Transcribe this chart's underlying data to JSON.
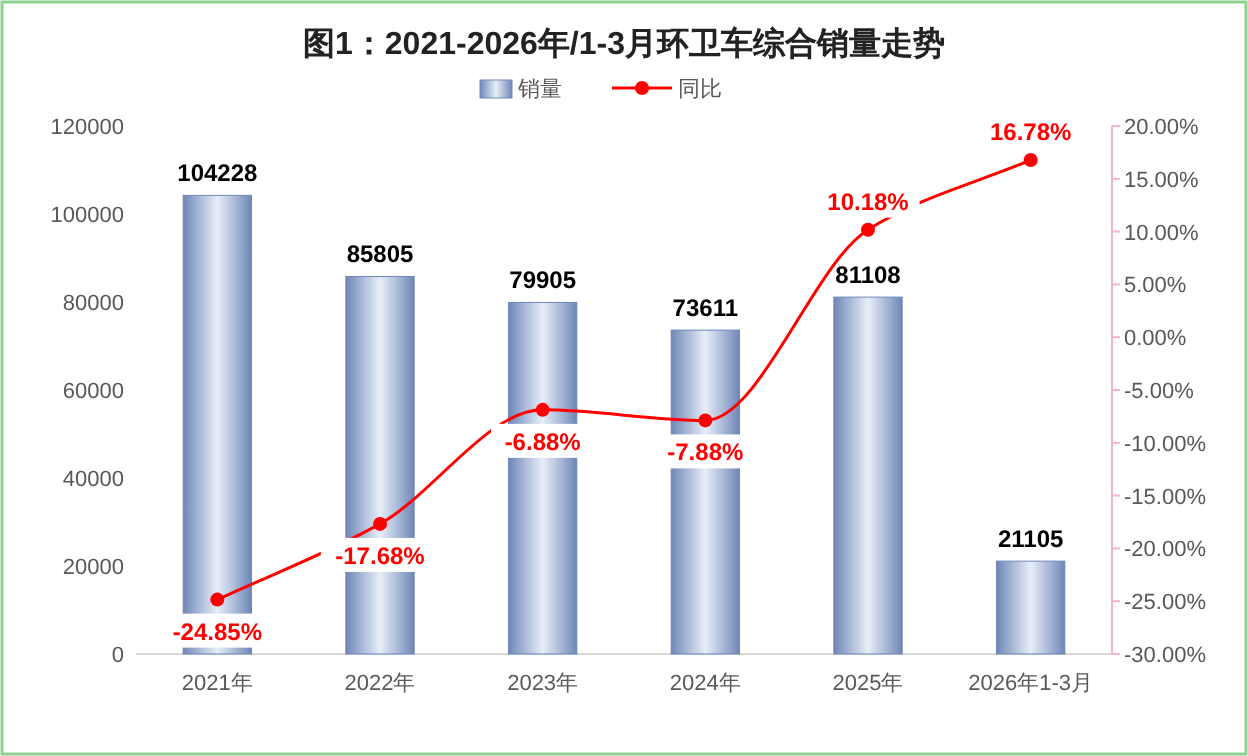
{
  "chart_data": {
    "type": "bar",
    "title": "图1：2021-2026年/1-3月环卫车综合销量走势",
    "categories": [
      "2021年",
      "2022年",
      "2023年",
      "2024年",
      "2025年",
      "2026年1-3月"
    ],
    "series": [
      {
        "name": "销量",
        "color": "#6f87b8",
        "values": [
          104228,
          85805,
          79905,
          73611,
          81108,
          21105
        ],
        "value_labels": [
          "104228",
          "85805",
          "79905",
          "73611",
          "81108",
          "21105"
        ]
      },
      {
        "name": "同比",
        "type": "line",
        "axis": "y2",
        "color": "#ff0000",
        "marker": "circle",
        "values": [
          -24.85,
          -17.68,
          -6.88,
          -7.88,
          10.18,
          16.78
        ],
        "value_labels": [
          "-24.85%",
          "-17.68%",
          "-6.88%",
          "-7.88%",
          "10.18%",
          "16.78%"
        ]
      }
    ],
    "ylim": [
      0,
      120000
    ],
    "yticks": [
      0,
      20000,
      40000,
      60000,
      80000,
      100000,
      120000
    ],
    "y2lim": [
      -30,
      20
    ],
    "y2ticks": [
      {
        "value": -30,
        "label": "-30.00%"
      },
      {
        "value": -25,
        "label": "-25.00%"
      },
      {
        "value": -20,
        "label": "-20.00%"
      },
      {
        "value": -15,
        "label": "-15.00%"
      },
      {
        "value": -10,
        "label": "-10.00%"
      },
      {
        "value": -5,
        "label": "-5.00%"
      },
      {
        "value": 0,
        "label": "0.00%"
      },
      {
        "value": 5,
        "label": "5.00%"
      },
      {
        "value": 10,
        "label": "10.00%"
      },
      {
        "value": 15,
        "label": "15.00%"
      },
      {
        "value": 20,
        "label": "20.00%"
      }
    ],
    "grid": false,
    "legend": "top"
  }
}
